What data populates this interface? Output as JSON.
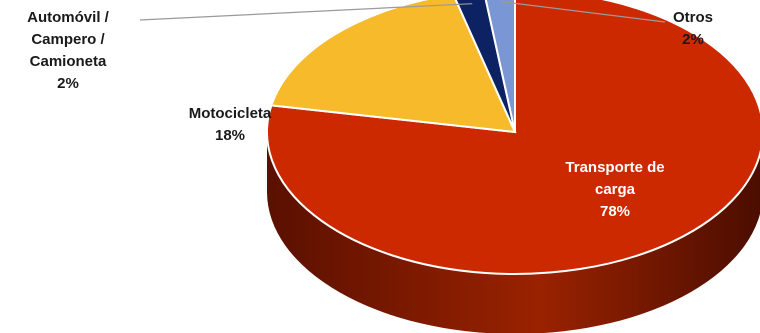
{
  "chart_data": {
    "type": "pie",
    "style": "3d",
    "slices": [
      {
        "name": "Transporte de carga",
        "label_lines": [
          "Transporte de",
          "carga"
        ],
        "value": 78,
        "value_label": "78%",
        "color": "#CC2900",
        "side_color": "#8A1C00"
      },
      {
        "name": "Motocicleta",
        "label_lines": [
          "Motocicleta"
        ],
        "value": 18,
        "value_label": "18%",
        "color": "#F7BA2A",
        "side_color": "#B8861B"
      },
      {
        "name": "Automóvil / Campero / Camioneta",
        "label_lines": [
          "Automóvil /",
          "Campero /",
          "Camioneta"
        ],
        "value": 2,
        "value_label": "2%",
        "color": "#0D2263",
        "side_color": "#061540"
      },
      {
        "name": "Otros",
        "label_lines": [
          "Otros"
        ],
        "value": 2,
        "value_label": "2%",
        "color": "#7A96D4",
        "side_color": "#52699E"
      }
    ]
  }
}
